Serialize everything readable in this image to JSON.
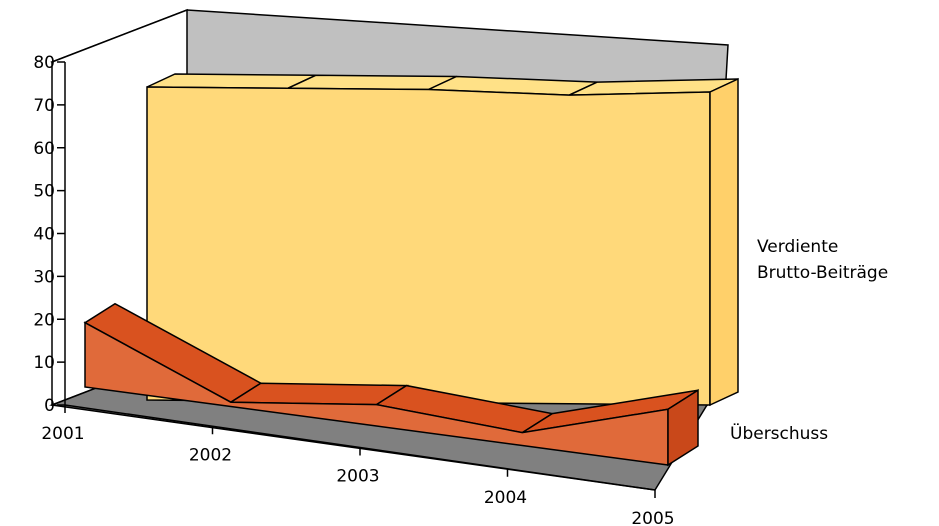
{
  "chart_data": {
    "type": "area",
    "three_d": true,
    "categories": [
      "2001",
      "2002",
      "2003",
      "2004",
      "2005"
    ],
    "series": [
      {
        "name": "Verdiente Brutto-Beiträge",
        "values": [
          73,
          73,
          73,
          72,
          73
        ]
      },
      {
        "name": "Überschuss",
        "values": [
          15,
          1,
          5,
          3,
          13
        ]
      }
    ],
    "legend_lines": [
      [
        "Verdiente",
        "Brutto-Beiträge"
      ],
      [
        "Überschuss"
      ]
    ],
    "yticks": [
      "0",
      "10",
      "20",
      "30",
      "40",
      "50",
      "60",
      "70",
      "80"
    ],
    "ylim": [
      0,
      80
    ],
    "grid": false,
    "legend_position": "right",
    "colors": {
      "back_wall": "#c0c0c0",
      "floor": "#808080",
      "series_front": [
        "#ffd97a",
        "#e06a3a"
      ],
      "series_top": [
        "#ffe187",
        "#d9521f"
      ],
      "series_side": [
        "#ffd06a",
        "#c9481a"
      ]
    }
  }
}
